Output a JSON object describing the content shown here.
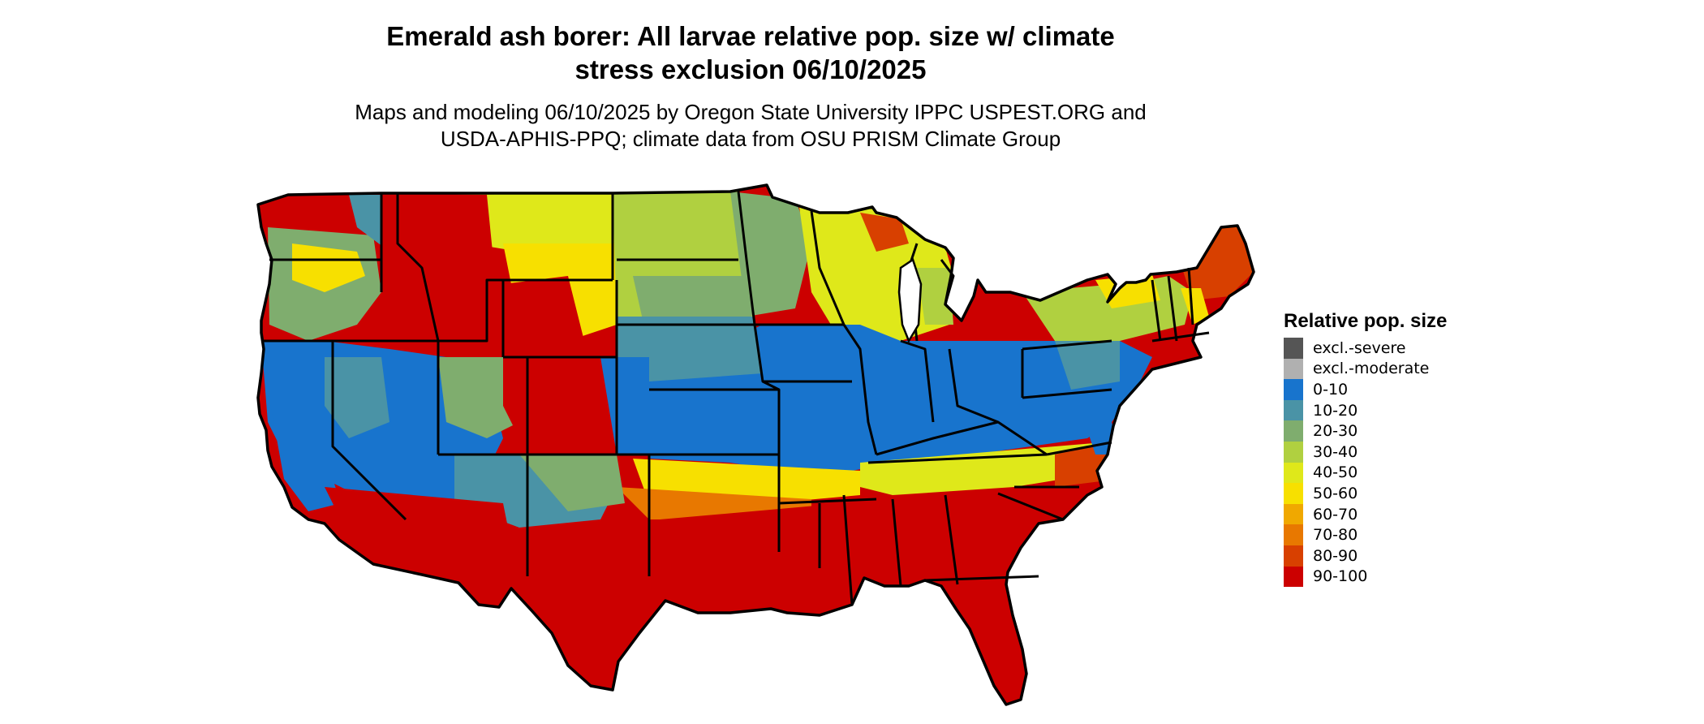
{
  "title": "Emerald ash borer: All larvae relative pop. size w/ climate stress exclusion 06/10/2025",
  "title_lines": [
    "Emerald ash borer: All larvae relative pop. size w/ climate",
    "stress exclusion 06/10/2025"
  ],
  "subtitle_lines": [
    "Maps and modeling 06/10/2025 by Oregon State University IPPC USPEST.ORG and",
    "USDA-APHIS-PPQ; climate data from OSU PRISM Climate Group"
  ],
  "legend": {
    "title": "Relative pop. size",
    "items": [
      {
        "label": "excl.-severe",
        "color": "#555555"
      },
      {
        "label": "excl.-moderate",
        "color": "#b0b0b0"
      },
      {
        "label": "0-10",
        "color": "#1874cd"
      },
      {
        "label": "10-20",
        "color": "#4a93a6"
      },
      {
        "label": "20-30",
        "color": "#7fad6e"
      },
      {
        "label": "30-40",
        "color": "#b0d040"
      },
      {
        "label": "40-50",
        "color": "#dfe81a"
      },
      {
        "label": "50-60",
        "color": "#f7e000"
      },
      {
        "label": "60-70",
        "color": "#f0a800"
      },
      {
        "label": "70-80",
        "color": "#e87800"
      },
      {
        "label": "80-90",
        "color": "#d84000"
      },
      {
        "label": "90-100",
        "color": "#cc0000"
      }
    ]
  }
}
